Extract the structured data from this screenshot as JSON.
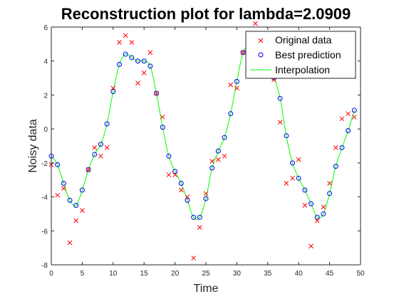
{
  "chart_data": {
    "type": "scatter",
    "title": "Reconstruction plot for lambda=2.0909",
    "xlabel": "Time",
    "ylabel": "Noisy data",
    "xlim": [
      0,
      50
    ],
    "ylim": [
      -8,
      6
    ],
    "xticks": [
      0,
      5,
      10,
      15,
      20,
      25,
      30,
      35,
      40,
      45,
      50
    ],
    "yticks": [
      -8,
      -6,
      -4,
      -2,
      0,
      2,
      4,
      6
    ],
    "grid": false,
    "legend_position": "top-right",
    "series": [
      {
        "name": "Original data",
        "marker": "x",
        "color": "#ff0000",
        "x": [
          0,
          1,
          2,
          3,
          4,
          5,
          6,
          7,
          8,
          9,
          10,
          11,
          12,
          13,
          14,
          15,
          16,
          17,
          18,
          19,
          20,
          21,
          22,
          23,
          24,
          25,
          26,
          27,
          28,
          29,
          30,
          31,
          32,
          33,
          34,
          35,
          36,
          37,
          38,
          39,
          40,
          41,
          42,
          43,
          44,
          45,
          46,
          47,
          48,
          49
        ],
        "y": [
          -2.1,
          -3.9,
          -3.5,
          -6.7,
          -5.4,
          -4.8,
          -2.4,
          -1.1,
          -1.6,
          -1.1,
          2.4,
          5.1,
          5.5,
          5.1,
          2.7,
          3.3,
          4.5,
          2.1,
          0.7,
          -2.7,
          -2.7,
          -3.6,
          -4.0,
          -7.6,
          -5.8,
          -3.8,
          -1.9,
          -1.8,
          -1.6,
          2.6,
          2.4,
          4.5,
          5.5,
          6.2,
          4.8,
          4.2,
          2.9,
          0.4,
          -3.2,
          -2.9,
          -1.8,
          -4.5,
          -6.9,
          -5.4,
          -4.6,
          -3.2,
          -1.1,
          0.6,
          0.9,
          0.7
        ]
      },
      {
        "name": "Best prediction",
        "marker": "o",
        "color": "#0000ff",
        "x": [
          0,
          1,
          2,
          3,
          4,
          5,
          6,
          7,
          8,
          9,
          10,
          11,
          12,
          13,
          14,
          15,
          16,
          17,
          18,
          19,
          20,
          21,
          22,
          23,
          24,
          25,
          26,
          27,
          28,
          29,
          30,
          31,
          32,
          33,
          34,
          35,
          36,
          37,
          38,
          39,
          40,
          41,
          42,
          43,
          44,
          45,
          46,
          47,
          48,
          49
        ],
        "y": [
          -1.6,
          -2.1,
          -3.2,
          -4.2,
          -4.5,
          -3.6,
          -2.4,
          -1.5,
          -0.9,
          0.3,
          2.2,
          3.8,
          4.4,
          4.2,
          4.0,
          4.0,
          3.7,
          2.1,
          0.1,
          -1.6,
          -2.5,
          -3.2,
          -4.2,
          -5.2,
          -5.2,
          -4.1,
          -2.3,
          -1.3,
          -0.5,
          0.9,
          2.8,
          4.5,
          4.9,
          5.0,
          4.1,
          3.3,
          3.0,
          1.8,
          -0.4,
          -2.0,
          -2.9,
          -3.6,
          -4.4,
          -5.2,
          -5.0,
          -3.8,
          -2.2,
          -1.1,
          -0.1,
          1.1
        ]
      },
      {
        "name": "Interpolation",
        "marker": "line",
        "color": "#00ff00"
      }
    ]
  }
}
